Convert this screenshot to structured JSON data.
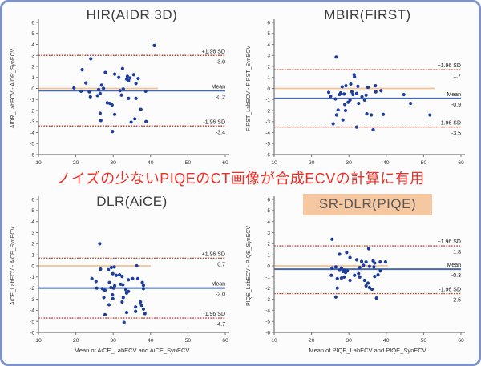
{
  "figure": {
    "annotation": "ノイズの少ないPIQEのCT画像が合成ECVの計算に有用",
    "colors": {
      "dot": "#1c3d9e",
      "mean_line": "#4668b0",
      "loa_line": "#b5523c",
      "zero_line": "#f4c193",
      "axis": "#777777",
      "tick_text": "#333333",
      "side_label_text": "#1a1a1a",
      "annotation_text": "#ed2e24",
      "border": "#8093c6",
      "highlight_bg": "#f5c8a2"
    }
  },
  "chart_data": [
    {
      "type": "scatter",
      "title": "HIR(AIDR 3D)",
      "highlight_title": false,
      "ylabel": "AIDR_LabECV - AIDR_SynECV",
      "xlabel": "",
      "xlim": [
        10,
        60
      ],
      "ylim": [
        -6,
        6
      ],
      "xticks": [
        10,
        20,
        30,
        40,
        50,
        60
      ],
      "ytick_step": 1,
      "legend_position": "right",
      "grid": false,
      "upper_loa": {
        "label": "+1.96 SD",
        "value": 3.0,
        "display": "3.0"
      },
      "mean": {
        "label": "Mean",
        "value": -0.2,
        "display": "-0.2"
      },
      "lower_loa": {
        "label": "-1.96 SD",
        "value": -3.4,
        "display": "-3.4"
      },
      "zero_line": {
        "value": 0,
        "x_end": 42
      },
      "points": [
        [
          41,
          3.9
        ],
        [
          24,
          2.7
        ],
        [
          21.7,
          1.7
        ],
        [
          32.5,
          1.8
        ],
        [
          27.9,
          1.45
        ],
        [
          30.4,
          1.3
        ],
        [
          33.8,
          1.1
        ],
        [
          34.5,
          0.95
        ],
        [
          35.5,
          1.25
        ],
        [
          36.7,
          0.9
        ],
        [
          31.5,
          1.0
        ],
        [
          33.6,
          0.85
        ],
        [
          34.1,
          0.7
        ],
        [
          22.7,
          0.5
        ],
        [
          26.9,
          0.3
        ],
        [
          36.1,
          0.45
        ],
        [
          19.5,
          0.05
        ],
        [
          21.4,
          -0.25
        ],
        [
          23.6,
          -0.3
        ],
        [
          26.1,
          -0.1
        ],
        [
          26.5,
          -0.45
        ],
        [
          27.4,
          0.0
        ],
        [
          31.8,
          -0.2
        ],
        [
          32.7,
          -0.05
        ],
        [
          38.7,
          -0.25
        ],
        [
          23.9,
          -0.75
        ],
        [
          25.8,
          -0.65
        ],
        [
          32.2,
          -0.6
        ],
        [
          34.1,
          -0.9
        ],
        [
          36.1,
          -0.9
        ],
        [
          28.4,
          -1.3
        ],
        [
          29.1,
          -1.35
        ],
        [
          29.7,
          -1.5
        ],
        [
          37.4,
          -1.9
        ],
        [
          26.5,
          -2.25
        ],
        [
          30.4,
          -2.35
        ],
        [
          26.7,
          -2.9
        ],
        [
          34.8,
          -3.05
        ],
        [
          35.8,
          -2.75
        ],
        [
          38.8,
          -3.0
        ],
        [
          29.8,
          -3.9
        ]
      ]
    },
    {
      "type": "scatter",
      "title": "MBIR(FIRST)",
      "highlight_title": false,
      "ylabel": "FIRST_LabECV - FIRST_SynECV",
      "xlabel": "",
      "xlim": [
        10,
        60
      ],
      "ylim": [
        -6,
        6
      ],
      "xticks": [
        10,
        20,
        30,
        40,
        50,
        60
      ],
      "ytick_step": 1,
      "legend_position": "right",
      "grid": false,
      "upper_loa": {
        "label": "+1.96 SD",
        "value": 1.7,
        "display": "1.7"
      },
      "mean": {
        "label": "Mean",
        "value": -0.9,
        "display": "-0.9"
      },
      "lower_loa": {
        "label": "-1.96 SD",
        "value": -3.5,
        "display": "-3.5"
      },
      "zero_line": {
        "value": 0,
        "x_end": 53
      },
      "points": [
        [
          26.6,
          2.85
        ],
        [
          31.4,
          1.25
        ],
        [
          31.5,
          1.05
        ],
        [
          29.2,
          0.25
        ],
        [
          28.2,
          0.15
        ],
        [
          30.5,
          0.4
        ],
        [
          32.4,
          0.2
        ],
        [
          37.1,
          0.25
        ],
        [
          35.1,
          0.1
        ],
        [
          38.6,
          -0.2
        ],
        [
          24.6,
          -0.35
        ],
        [
          27.8,
          -0.4
        ],
        [
          28.7,
          -0.5
        ],
        [
          30.8,
          -0.3
        ],
        [
          31.1,
          -0.55
        ],
        [
          25.1,
          -0.7
        ],
        [
          26.4,
          -0.95
        ],
        [
          27.5,
          -0.55
        ],
        [
          32.1,
          -0.45
        ],
        [
          33.5,
          -0.75
        ],
        [
          34.6,
          -0.6
        ],
        [
          30.3,
          -1.05
        ],
        [
          32.6,
          -1.35
        ],
        [
          34.2,
          -1.05
        ],
        [
          37.2,
          -0.3
        ],
        [
          44.7,
          -0.55
        ],
        [
          46.5,
          -1.35
        ],
        [
          29.8,
          -1.25
        ],
        [
          28.9,
          -1.45
        ],
        [
          27.1,
          -1.95
        ],
        [
          29.1,
          -2.0
        ],
        [
          26.7,
          -2.4
        ],
        [
          34.8,
          -2.3
        ],
        [
          36.0,
          -2.4
        ],
        [
          39.2,
          -2.35
        ],
        [
          51.7,
          -2.4
        ],
        [
          25.8,
          -3.2
        ],
        [
          32.1,
          -3.5
        ],
        [
          36.5,
          -3.75
        ],
        [
          28.4,
          -2.85
        ]
      ]
    },
    {
      "type": "scatter",
      "title": "DLR(AiCE)",
      "highlight_title": false,
      "ylabel": "AiCE_LabECV - AiCE_SynECV",
      "xlabel": "Mean of AiCE_LabECV and AiCE_SynECV",
      "xlim": [
        10,
        60
      ],
      "ylim": [
        -6,
        6
      ],
      "xticks": [
        10,
        20,
        30,
        40,
        50,
        60
      ],
      "ytick_step": 1,
      "legend_position": "right",
      "grid": false,
      "upper_loa": {
        "label": "+1.96 SD",
        "value": 0.7,
        "display": "0.7"
      },
      "mean": {
        "label": "Mean",
        "value": -2.0,
        "display": "-2.0"
      },
      "lower_loa": {
        "label": "-1.96 SD",
        "value": -4.7,
        "display": "-4.7"
      },
      "zero_line": {
        "value": 0,
        "x_end": 40
      },
      "points": [
        [
          26.4,
          2.0
        ],
        [
          29.5,
          -0.15
        ],
        [
          30.3,
          -0.1
        ],
        [
          26.6,
          -0.3
        ],
        [
          28.7,
          -0.35
        ],
        [
          36.3,
          0.0
        ],
        [
          24.3,
          -1.15
        ],
        [
          25.4,
          -1.4
        ],
        [
          29.9,
          -0.7
        ],
        [
          30.8,
          -0.85
        ],
        [
          31.7,
          -0.8
        ],
        [
          32.4,
          -0.95
        ],
        [
          29.0,
          -1.5
        ],
        [
          30.4,
          -1.8
        ],
        [
          32.0,
          -1.65
        ],
        [
          32.6,
          -1.7
        ],
        [
          34.1,
          -1.25
        ],
        [
          35.2,
          -1.15
        ],
        [
          36.6,
          -1.15
        ],
        [
          37.8,
          -1.5
        ],
        [
          38.1,
          -1.75
        ],
        [
          25.6,
          -2.0
        ],
        [
          27.1,
          -2.05
        ],
        [
          27.8,
          -2.2
        ],
        [
          29.4,
          -1.95
        ],
        [
          30.1,
          -2.0
        ],
        [
          33.4,
          -2.15
        ],
        [
          34.1,
          -2.3
        ],
        [
          38.1,
          -2.05
        ],
        [
          27.5,
          -2.85
        ],
        [
          29.8,
          -2.6
        ],
        [
          29.9,
          -2.95
        ],
        [
          32.7,
          -2.85
        ],
        [
          33.6,
          -2.45
        ],
        [
          28.9,
          -3.5
        ],
        [
          32.4,
          -3.25
        ],
        [
          37.3,
          -3.25
        ],
        [
          37.6,
          -3.55
        ],
        [
          36.0,
          -3.7
        ],
        [
          38.1,
          -3.9
        ],
        [
          33.6,
          -4.2
        ],
        [
          36.0,
          -4.1
        ],
        [
          27.8,
          -4.4
        ],
        [
          38.5,
          -4.3
        ],
        [
          32.9,
          -5.1
        ]
      ]
    },
    {
      "type": "scatter",
      "title": "SR-DLR(PIQE)",
      "highlight_title": true,
      "ylabel": "PIQE_LabECV - PIQE_SynECV",
      "xlabel": "Mean of PIQE_LabECV and PIQE_SynECV",
      "xlim": [
        10,
        60
      ],
      "ylim": [
        -6,
        6
      ],
      "xticks": [
        10,
        20,
        30,
        40,
        50,
        60
      ],
      "ytick_step": 1,
      "legend_position": "right",
      "grid": false,
      "upper_loa": {
        "label": "+1.96 SD",
        "value": 1.8,
        "display": "1.8"
      },
      "mean": {
        "label": "Mean",
        "value": -0.3,
        "display": "-0.3"
      },
      "lower_loa": {
        "label": "-1.96 SD",
        "value": -2.5,
        "display": "-2.5"
      },
      "zero_line": {
        "value": 0,
        "x_end": 40.5
      },
      "points": [
        [
          25.5,
          2.4
        ],
        [
          35.3,
          1.55
        ],
        [
          27.5,
          1.05
        ],
        [
          29.4,
          1.2
        ],
        [
          30.3,
          0.75
        ],
        [
          32.1,
          0.55
        ],
        [
          33.4,
          0.4
        ],
        [
          34.6,
          0.35
        ],
        [
          36.5,
          0.45
        ],
        [
          36.9,
          0.25
        ],
        [
          38.4,
          0.35
        ],
        [
          39.8,
          0.35
        ],
        [
          32.9,
          -0.15
        ],
        [
          33.9,
          0.05
        ],
        [
          35.5,
          -0.05
        ],
        [
          36.7,
          -0.1
        ],
        [
          25.5,
          -0.2
        ],
        [
          26.5,
          -0.1
        ],
        [
          27.5,
          -0.4
        ],
        [
          28.0,
          -0.2
        ],
        [
          28.4,
          -0.5
        ],
        [
          28.7,
          -0.4
        ],
        [
          29.1,
          -0.6
        ],
        [
          29.6,
          -0.45
        ],
        [
          25.3,
          -0.85
        ],
        [
          26.9,
          -1.15
        ],
        [
          28.0,
          -1.1
        ],
        [
          28.7,
          -1.0
        ],
        [
          30.3,
          -1.3
        ],
        [
          31.5,
          -0.85
        ],
        [
          32.6,
          -0.7
        ],
        [
          32.9,
          -1.0
        ],
        [
          34.2,
          -1.3
        ],
        [
          35.1,
          -1.55
        ],
        [
          35.5,
          -1.95
        ],
        [
          36.2,
          -2.1
        ],
        [
          36.9,
          -0.95
        ],
        [
          37.8,
          -0.8
        ],
        [
          38.4,
          -0.45
        ],
        [
          26.9,
          -2.0
        ],
        [
          26.5,
          -2.8
        ],
        [
          37.4,
          -2.9
        ],
        [
          34.6,
          -1.8
        ]
      ]
    }
  ]
}
